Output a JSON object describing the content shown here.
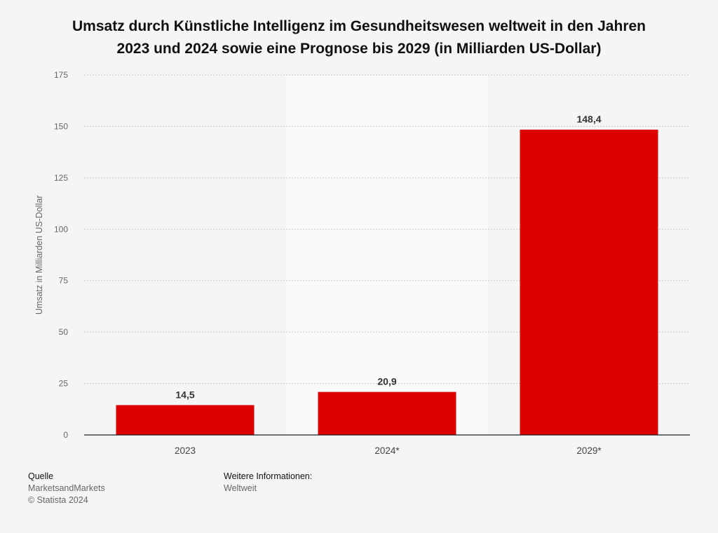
{
  "title_line1": "Umsatz durch Künstliche Intelligenz im Gesundheitswesen weltweit in den Jahren",
  "title_line2": "2023 und 2024 sowie eine Prognose bis 2029 (in Milliarden US-Dollar)",
  "chart_data": {
    "type": "bar",
    "categories": [
      "2023",
      "2024*",
      "2029*"
    ],
    "values": [
      14.5,
      20.9,
      148.4
    ],
    "value_labels": [
      "14,5",
      "20,9",
      "148,4"
    ],
    "ylabel": "Umsatz in Milliarden US-Dollar",
    "xlabel": "",
    "ylim": [
      0,
      175
    ],
    "yticks": [
      0,
      25,
      50,
      75,
      100,
      125,
      150,
      175
    ],
    "grid": true,
    "bar_color": "#dd0000",
    "shaded_band_color": "#fafafa"
  },
  "footer": {
    "source_heading": "Quelle",
    "source": "MarketsandMarkets",
    "copyright": "© Statista 2024",
    "info_heading": "Weitere Informationen:",
    "info": "Weltweit"
  }
}
